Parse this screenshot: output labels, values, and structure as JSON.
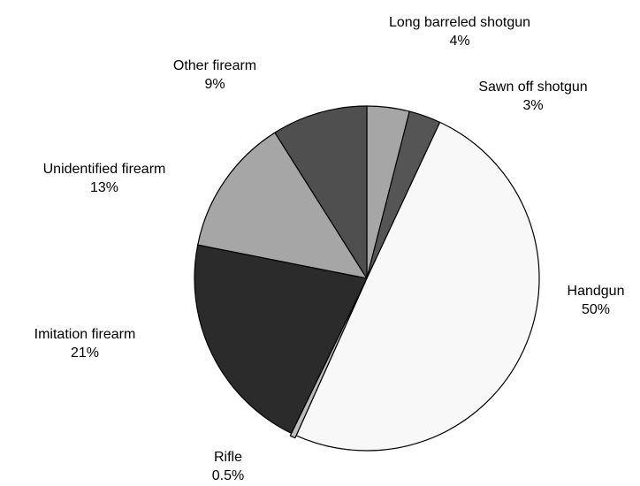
{
  "chart_data": {
    "type": "pie",
    "title": "",
    "start_angle_deg": 0,
    "direction": "clockwise",
    "slices": [
      {
        "label": "Long barreled shotgun",
        "value": 4,
        "value_label": "4%",
        "color": "#a6a6a6"
      },
      {
        "label": "Sawn off shotgun",
        "value": 3,
        "value_label": "3%",
        "color": "#555555"
      },
      {
        "label": "Handgun",
        "value": 50,
        "value_label": "50%",
        "color": "#f8f8f8"
      },
      {
        "label": "Rifle",
        "value": 0.5,
        "value_label": "0.5%",
        "color": "#bdbdbd"
      },
      {
        "label": "Imitation firearm",
        "value": 21,
        "value_label": "21%",
        "color": "#2b2b2b"
      },
      {
        "label": "Unidentified firearm",
        "value": 13,
        "value_label": "13%",
        "color": "#a6a6a6"
      },
      {
        "label": "Other firearm",
        "value": 9,
        "value_label": "9%",
        "color": "#4f4f4f"
      }
    ]
  }
}
